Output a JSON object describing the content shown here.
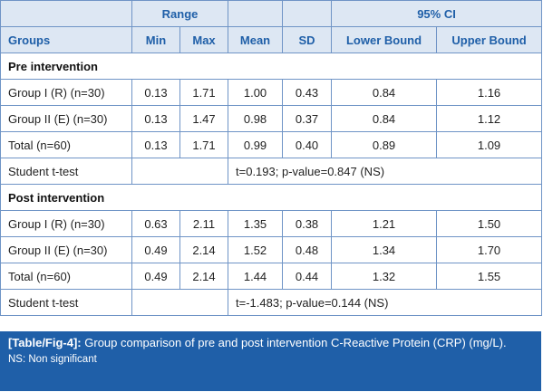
{
  "table": {
    "header": {
      "range": "Range",
      "ci": "95% CI",
      "groups": "Groups",
      "min": "Min",
      "max": "Max",
      "mean": "Mean",
      "sd": "SD",
      "lower": "Lower Bound",
      "upper": "Upper Bound"
    },
    "pre": {
      "title": "Pre intervention",
      "rows": [
        {
          "group": "Group I (R) (n=30)",
          "min": "0.13",
          "max": "1.71",
          "mean": "1.00",
          "sd": "0.43",
          "lower": "0.84",
          "upper": "1.16"
        },
        {
          "group": "Group II (E) (n=30)",
          "min": "0.13",
          "max": "1.47",
          "mean": "0.98",
          "sd": "0.37",
          "lower": "0.84",
          "upper": "1.12"
        },
        {
          "group": "Total (n=60)",
          "min": "0.13",
          "max": "1.71",
          "mean": "0.99",
          "sd": "0.40",
          "lower": "0.89",
          "upper": "1.09"
        }
      ],
      "ttest_label": "Student t-test",
      "ttest_value": "t=0.193; p-value=0.847 (NS)"
    },
    "post": {
      "title": "Post intervention",
      "rows": [
        {
          "group": "Group I (R) (n=30)",
          "min": "0.63",
          "max": "2.11",
          "mean": "1.35",
          "sd": "0.38",
          "lower": "1.21",
          "upper": "1.50"
        },
        {
          "group": "Group II (E) (n=30)",
          "min": "0.49",
          "max": "2.14",
          "mean": "1.52",
          "sd": "0.48",
          "lower": "1.34",
          "upper": "1.70"
        },
        {
          "group": "Total (n=60)",
          "min": "0.49",
          "max": "2.14",
          "mean": "1.44",
          "sd": "0.44",
          "lower": "1.32",
          "upper": "1.55"
        }
      ],
      "ttest_label": "Student t-test",
      "ttest_value": "t=-1.483; p-value=0.144 (NS)"
    }
  },
  "caption": {
    "label": "[Table/Fig-4]:",
    "text": " Group comparison of pre and post intervention C-Reactive Protein (CRP) (mg/L).",
    "note": "NS: Non significant"
  },
  "colors": {
    "header_bg": "#dde7f3",
    "header_text": "#1f5fa8",
    "border": "#6f94c6",
    "caption_bg": "#1f5fa8"
  }
}
